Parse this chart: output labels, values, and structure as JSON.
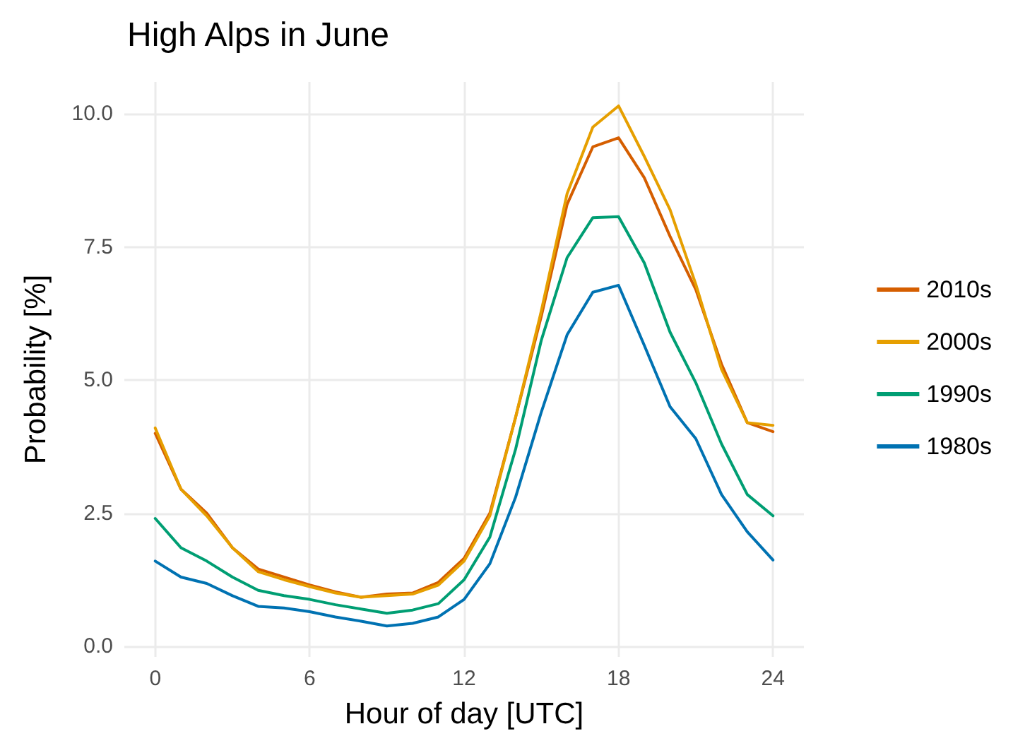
{
  "chart_data": {
    "type": "line",
    "title": "High Alps in June",
    "xlabel": "Hour of day [UTC]",
    "ylabel": "Probability [%]",
    "x": [
      0,
      1,
      2,
      3,
      4,
      5,
      6,
      7,
      8,
      9,
      10,
      11,
      12,
      13,
      14,
      15,
      16,
      17,
      18,
      19,
      20,
      21,
      22,
      23,
      24
    ],
    "series": [
      {
        "name": "2010s",
        "color": "#d55e00",
        "values": [
          4.0,
          2.95,
          2.5,
          1.85,
          1.45,
          1.3,
          1.15,
          1.02,
          0.92,
          0.98,
          1.0,
          1.2,
          1.65,
          2.5,
          4.3,
          6.2,
          8.3,
          9.38,
          9.55,
          8.8,
          7.7,
          6.7,
          5.3,
          4.2,
          4.03
        ]
      },
      {
        "name": "2000s",
        "color": "#e69f00",
        "values": [
          4.1,
          2.95,
          2.45,
          1.85,
          1.4,
          1.25,
          1.12,
          1.0,
          0.92,
          0.95,
          0.98,
          1.15,
          1.6,
          2.45,
          4.3,
          6.3,
          8.5,
          9.75,
          10.15,
          9.2,
          8.2,
          6.8,
          5.2,
          4.2,
          4.15
        ]
      },
      {
        "name": "1990s",
        "color": "#009e73",
        "values": [
          2.4,
          1.85,
          1.6,
          1.3,
          1.05,
          0.95,
          0.88,
          0.78,
          0.7,
          0.62,
          0.68,
          0.8,
          1.25,
          2.05,
          3.7,
          5.75,
          7.3,
          8.05,
          8.07,
          7.2,
          5.9,
          4.95,
          3.8,
          2.85,
          2.45
        ]
      },
      {
        "name": "1980s",
        "color": "#0072b2",
        "values": [
          1.6,
          1.3,
          1.18,
          0.95,
          0.75,
          0.72,
          0.65,
          0.55,
          0.47,
          0.38,
          0.43,
          0.55,
          0.88,
          1.55,
          2.8,
          4.4,
          5.85,
          6.65,
          6.78,
          5.65,
          4.5,
          3.9,
          2.85,
          2.15,
          1.62
        ]
      }
    ],
    "xlim": [
      -1.2,
      25.2
    ],
    "xticks": [
      0,
      6,
      12,
      18,
      24
    ],
    "ylim": [
      -0.2,
      10.6
    ],
    "yticks": [
      {
        "value": 0,
        "label": "0.0"
      },
      {
        "value": 2.5,
        "label": "2.5"
      },
      {
        "value": 5,
        "label": "5.0"
      },
      {
        "value": 7.5,
        "label": "7.5"
      },
      {
        "value": 10,
        "label": "10.0"
      }
    ],
    "grid": true,
    "legend": "right",
    "marker": "none",
    "line_style": "solid"
  }
}
